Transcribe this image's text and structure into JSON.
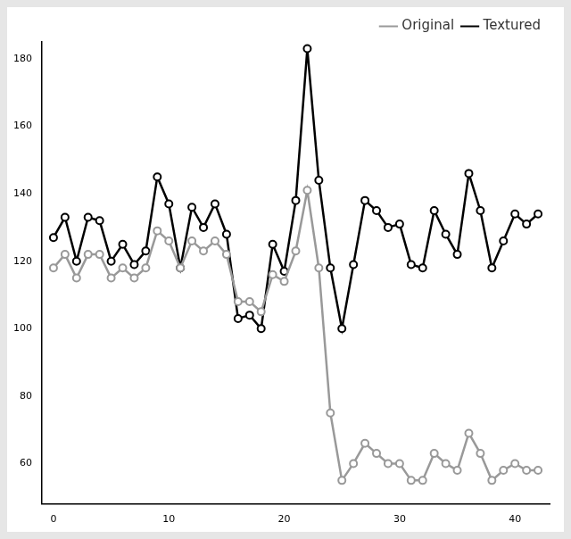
{
  "chart_data": {
    "type": "line",
    "x": [
      0,
      1,
      2,
      3,
      4,
      5,
      6,
      7,
      8,
      9,
      10,
      11,
      12,
      13,
      14,
      15,
      16,
      17,
      18,
      19,
      20,
      21,
      22,
      23,
      24,
      25,
      26,
      27,
      28,
      29,
      30,
      31,
      32,
      33,
      34,
      35,
      36,
      37,
      38,
      39,
      40,
      41,
      42
    ],
    "series": [
      {
        "name": "Original",
        "color": "#999999",
        "marker": "circle",
        "values": [
          118,
          122,
          115,
          122,
          122,
          115,
          118,
          115,
          118,
          129,
          126,
          118,
          126,
          123,
          126,
          122,
          108,
          108,
          105,
          116,
          114,
          123,
          141,
          118,
          75,
          55,
          60,
          66,
          63,
          60,
          60,
          55,
          55,
          63,
          60,
          58,
          69,
          63,
          55,
          58,
          60,
          58,
          58
        ]
      },
      {
        "name": "Textured",
        "color": "#000000",
        "marker": "circle",
        "values": [
          127,
          133,
          120,
          133,
          132,
          120,
          125,
          119,
          123,
          145,
          137,
          118,
          136,
          130,
          137,
          128,
          103,
          104,
          100,
          125,
          117,
          138,
          183,
          144,
          118,
          100,
          119,
          138,
          135,
          130,
          131,
          119,
          118,
          135,
          128,
          122,
          146,
          135,
          118,
          126,
          134,
          131,
          134
        ]
      }
    ],
    "xlim": [
      -1,
      43
    ],
    "xticks": [
      0,
      10,
      20,
      30,
      40
    ],
    "ylim": [
      48,
      185
    ],
    "yticks": [
      60,
      80,
      100,
      120,
      140,
      160,
      180
    ],
    "grid": false,
    "legend": "top-right"
  }
}
